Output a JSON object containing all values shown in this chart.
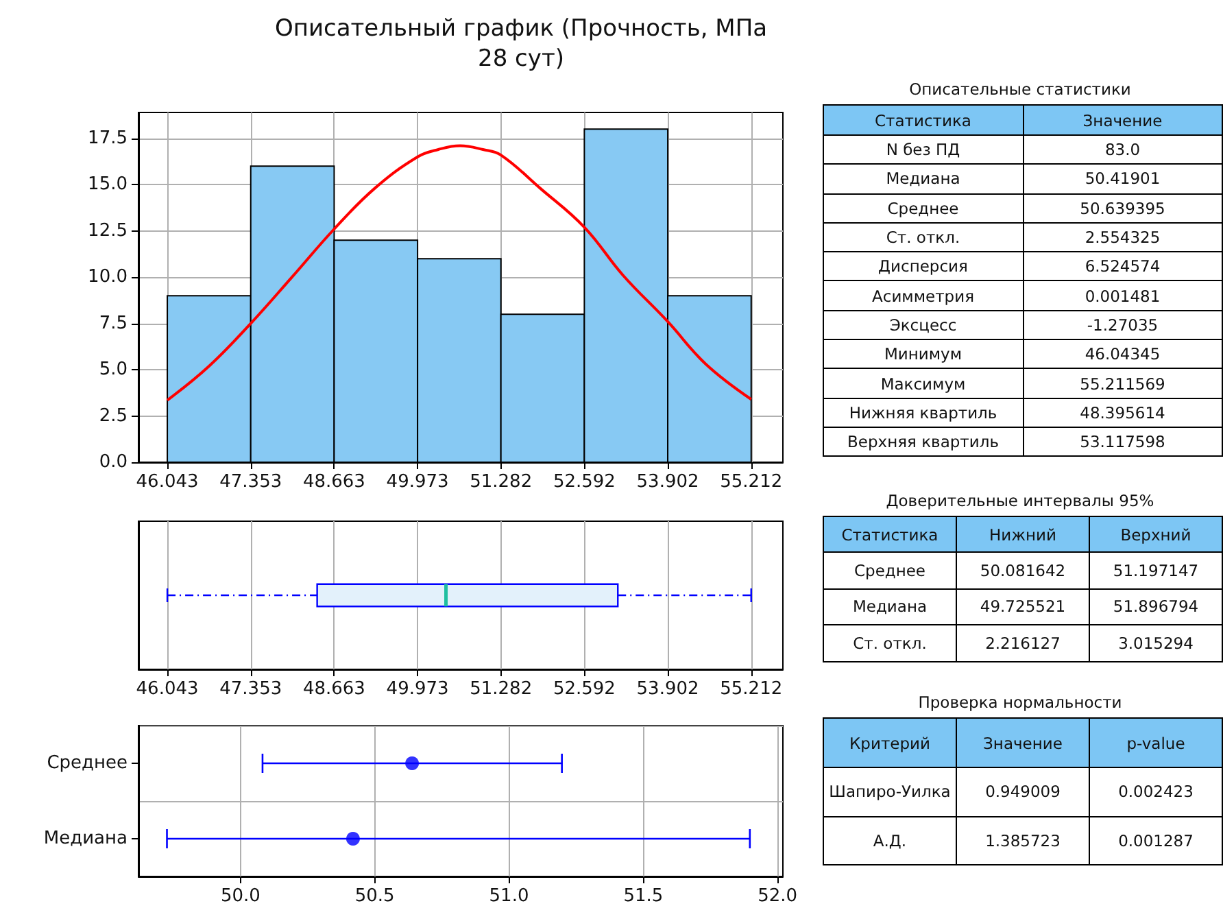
{
  "chart_data": [
    {
      "type": "histogram",
      "title": "Описательный график (Прочность, МПа\n28 сут)",
      "bins": [
        46.043,
        47.353,
        48.663,
        49.973,
        51.282,
        52.592,
        53.902,
        55.212
      ],
      "series": [
        {
          "type": "histogram",
          "color": "#87c9f3",
          "values": [
            9,
            16,
            12,
            11,
            8,
            18,
            9
          ]
        },
        {
          "type": "line",
          "color": "#ff0000",
          "x": [
            46.043,
            46.7,
            47.353,
            48.0,
            48.663,
            49.3,
            49.973,
            50.3,
            50.64,
            51.0,
            51.282,
            51.9,
            52.592,
            53.2,
            53.902,
            54.5,
            55.212
          ],
          "values": [
            3.35,
            5.2,
            7.5,
            10.0,
            12.6,
            14.8,
            16.5,
            16.9,
            17.1,
            16.9,
            16.6,
            14.8,
            12.7,
            10.1,
            7.6,
            5.3,
            3.4
          ]
        }
      ],
      "xlim": [
        45.59,
        55.71
      ],
      "xticks": [
        46.043,
        47.353,
        48.663,
        49.973,
        51.282,
        52.592,
        53.902,
        55.212
      ],
      "ylim": [
        0,
        18.9
      ],
      "yticks": [
        {
          "value": 0,
          "label": "0.0"
        },
        {
          "value": 2.5,
          "label": "2.5"
        },
        {
          "value": 5,
          "label": "5.0"
        },
        {
          "value": 7.5,
          "label": "7.5"
        },
        {
          "value": 10,
          "label": "10.0"
        },
        {
          "value": 12.5,
          "label": "12.5"
        },
        {
          "value": 15,
          "label": "15.0"
        },
        {
          "value": 17.5,
          "label": "17.5"
        }
      ],
      "grid": true,
      "marker": "none"
    },
    {
      "type": "box",
      "orientation": "horizontal",
      "categories": [
        null
      ],
      "series": [
        {
          "type": "box",
          "color": "#0000ff",
          "boxes": [
            {
              "low": 46.043,
              "q1": 48.396,
              "median": 50.419,
              "q3": 53.118,
              "high": 55.212
            }
          ]
        }
      ],
      "xlim": [
        45.59,
        55.71
      ],
      "xticks": [
        46.043,
        47.353,
        48.663,
        49.973,
        51.282,
        52.592,
        53.902,
        55.212
      ],
      "grid": "x",
      "tick_labels": "x"
    },
    {
      "type": "scatter",
      "orientation": "horizontal",
      "categories": [
        "Среднее",
        "Медиана"
      ],
      "values": [
        50.639,
        50.419
      ],
      "errors": [
        [
          50.082,
          51.197
        ],
        [
          49.726,
          51.897
        ]
      ],
      "color": "#0000ff",
      "marker": "circle",
      "xlim": [
        49.62,
        52.02
      ],
      "xticks": [
        {
          "value": 50,
          "label": "50.0"
        },
        {
          "value": 50.5,
          "label": "50.5"
        },
        {
          "value": 51,
          "label": "51.0"
        },
        {
          "value": 51.5,
          "label": "51.5"
        },
        {
          "value": 52,
          "label": "52.0"
        }
      ],
      "grid": true
    },
    {
      "type": "other",
      "title": "Описательные статистики",
      "categories": [
        "Статистика",
        "Значение"
      ],
      "y_categories": [
        "N без ПД",
        "Медиана",
        "Среднее",
        "Ст. откл.",
        "Дисперсия",
        "Асимметрия",
        "Эксцесс",
        "Минимум",
        "Максимум",
        "Нижняя квартиль",
        "Верхняя квартиль"
      ],
      "cell_labels": [
        [
          "83.0"
        ],
        [
          "50.41901"
        ],
        [
          "50.639395"
        ],
        [
          "2.554325"
        ],
        [
          "6.524574"
        ],
        [
          "0.001481"
        ],
        [
          "-1.27035"
        ],
        [
          "46.04345"
        ],
        [
          "55.211569"
        ],
        [
          "48.395614"
        ],
        [
          "53.117598"
        ]
      ]
    },
    {
      "type": "other",
      "title": "Доверительные интервалы 95%",
      "categories": [
        "Статистика",
        "Нижний",
        "Верхний"
      ],
      "y_categories": [
        "Среднее",
        "Медиана",
        "Ст. откл."
      ],
      "cell_labels": [
        [
          "50.081642",
          "51.197147"
        ],
        [
          "49.725521",
          "51.896794"
        ],
        [
          "2.216127",
          "3.015294"
        ]
      ]
    },
    {
      "type": "other",
      "title": "Проверка нормальности",
      "categories": [
        "Критерий",
        "Значение",
        "p-value"
      ],
      "y_categories": [
        "Шапиро-Уилка",
        "А.Д."
      ],
      "cell_labels": [
        [
          "0.949009",
          "0.002423"
        ],
        [
          "1.385723",
          "0.001287"
        ]
      ]
    }
  ]
}
